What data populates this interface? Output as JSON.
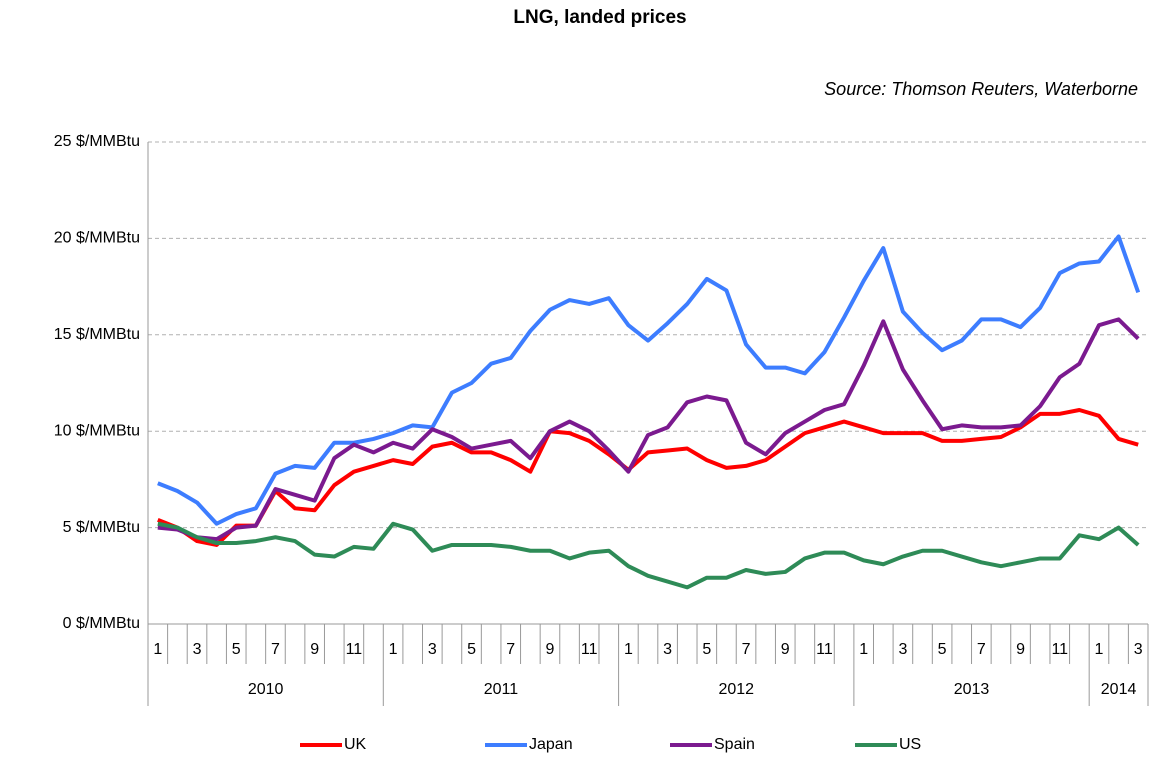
{
  "chart_data": {
    "type": "line",
    "title": "LNG, landed prices",
    "subtitle": "Source: Thomson Reuters, Waterborne",
    "categories": [
      "1",
      null,
      "3",
      null,
      "5",
      null,
      "7",
      null,
      "9",
      null,
      "11",
      null,
      "1",
      null,
      "3",
      null,
      "5",
      null,
      "7",
      null,
      "9",
      null,
      "11",
      null,
      "1",
      null,
      "3",
      null,
      "5",
      null,
      "7",
      null,
      "9",
      null,
      "11",
      null,
      "1",
      null,
      "3",
      null,
      "5",
      null,
      "7",
      null,
      "9",
      null,
      "11",
      null,
      "1",
      null,
      "3"
    ],
    "years": [
      "2010",
      "2011",
      "2012",
      "2013",
      "2014"
    ],
    "ylim": [
      0,
      25
    ],
    "yticks": [
      {
        "value": 0,
        "label": "0 $/MMBtu"
      },
      {
        "value": 5,
        "label": "5 $/MMBtu"
      },
      {
        "value": 10,
        "label": "10 $/MMBtu"
      },
      {
        "value": 15,
        "label": "15 $/MMBtu"
      },
      {
        "value": 20,
        "label": "20 $/MMBtu"
      },
      {
        "value": 25,
        "label": "25 $/MMBtu"
      }
    ],
    "grid": true,
    "legend": "bottom",
    "series": [
      {
        "name": "UK",
        "color": "#ff0000",
        "values": [
          5.4,
          5.0,
          4.3,
          4.1,
          5.1,
          5.1,
          6.9,
          6.0,
          5.9,
          7.2,
          7.9,
          8.2,
          8.5,
          8.3,
          9.2,
          9.4,
          8.9,
          8.9,
          8.5,
          7.9,
          10.0,
          9.9,
          9.5,
          8.8,
          8.0,
          8.9,
          9.0,
          9.1,
          8.5,
          8.1,
          8.2,
          8.5,
          9.2,
          9.9,
          10.2,
          10.5,
          10.2,
          9.9,
          9.9,
          9.9,
          9.5,
          9.5,
          9.6,
          9.7,
          10.2,
          10.9,
          10.9,
          11.1,
          10.8,
          9.6,
          9.3
        ]
      },
      {
        "name": "Japan",
        "color": "#3d7dff",
        "values": [
          7.3,
          6.9,
          6.3,
          5.2,
          5.7,
          6.0,
          7.8,
          8.2,
          8.1,
          9.4,
          9.4,
          9.6,
          9.9,
          10.3,
          10.2,
          12.0,
          12.5,
          13.5,
          13.8,
          15.2,
          16.3,
          16.8,
          16.6,
          16.9,
          15.5,
          14.7,
          15.6,
          16.6,
          17.9,
          17.3,
          14.5,
          13.3,
          13.3,
          13.0,
          14.1,
          15.9,
          17.8,
          19.5,
          16.2,
          15.1,
          14.2,
          14.7,
          15.8,
          15.8,
          15.4,
          16.4,
          18.2,
          18.7,
          18.8,
          20.1,
          17.2
        ]
      },
      {
        "name": "Spain",
        "color": "#7b1a8f",
        "values": [
          5.0,
          4.9,
          4.5,
          4.4,
          5.0,
          5.1,
          7.0,
          6.7,
          6.4,
          8.6,
          9.3,
          8.9,
          9.4,
          9.1,
          10.1,
          9.7,
          9.1,
          9.3,
          9.5,
          8.6,
          10.0,
          10.5,
          10.0,
          9.0,
          7.9,
          9.8,
          10.2,
          11.5,
          11.8,
          11.6,
          9.4,
          8.8,
          9.9,
          10.5,
          11.1,
          11.4,
          13.4,
          15.7,
          13.2,
          11.6,
          10.1,
          10.3,
          10.2,
          10.2,
          10.3,
          11.3,
          12.8,
          13.5,
          15.5,
          15.8,
          14.8
        ]
      },
      {
        "name": "US",
        "color": "#2e8b57",
        "values": [
          5.2,
          5.0,
          4.5,
          4.2,
          4.2,
          4.3,
          4.5,
          4.3,
          3.6,
          3.5,
          4.0,
          3.9,
          5.2,
          4.9,
          3.8,
          4.1,
          4.1,
          4.1,
          4.0,
          3.8,
          3.8,
          3.4,
          3.7,
          3.8,
          3.0,
          2.5,
          2.2,
          1.9,
          2.4,
          2.4,
          2.8,
          2.6,
          2.7,
          3.4,
          3.7,
          3.7,
          3.3,
          3.1,
          3.5,
          3.8,
          3.8,
          3.5,
          3.2,
          3.0,
          3.2,
          3.4,
          3.4,
          4.6,
          4.4,
          5.0,
          4.1
        ]
      }
    ]
  }
}
